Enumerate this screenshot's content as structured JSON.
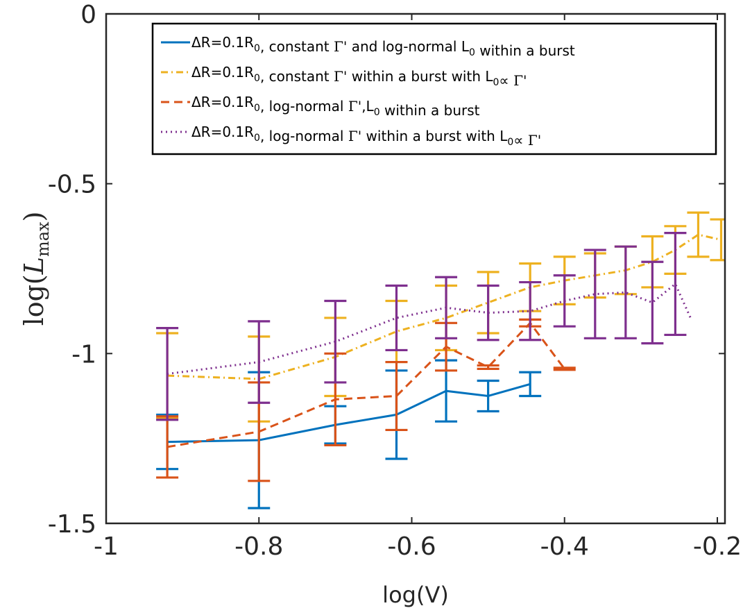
{
  "chart_data": {
    "type": "line",
    "title": "",
    "xlabel": "log(V)",
    "ylabel": "log(L_max)",
    "ylabel_parts": {
      "prefix": "log(",
      "var": "L",
      "sub": "max",
      "suffix": ")"
    },
    "xlim": [
      -1,
      -0.19
    ],
    "ylim": [
      -1.5,
      0
    ],
    "xticks": [
      -1,
      -0.8,
      -0.6,
      -0.4,
      -0.2
    ],
    "xtick_labels": [
      "-1",
      "-0.8",
      "-0.6",
      "-0.4",
      "-0.2"
    ],
    "yticks": [
      0,
      -0.5,
      -1,
      -1.5
    ],
    "ytick_labels": [
      "0",
      "-0.5",
      "-1",
      "-1.5"
    ],
    "grid": false,
    "legend_position": "top-right",
    "series": [
      {
        "name": "ΔR=0.1R0, constant Γ' and log-normal L0 within a burst",
        "legend_parts": [
          {
            "t": "ΔR=0.1R",
            "s": "n"
          },
          {
            "t": "0",
            "s": "sub"
          },
          {
            "t": ", constant ",
            "s": "n"
          },
          {
            "t": "Γ'",
            "s": "g"
          },
          {
            "t": " and log-normal L",
            "s": "n"
          },
          {
            "t": "0",
            "s": "sub"
          },
          {
            "t": " within a burst",
            "s": "n"
          }
        ],
        "color": "#0072BD",
        "style": "solid",
        "x": [
          -0.92,
          -0.8,
          -0.7,
          -0.62,
          -0.555,
          -0.5,
          -0.445
        ],
        "y": [
          -1.26,
          -1.255,
          -1.21,
          -1.18,
          -1.11,
          -1.125,
          -1.09
        ],
        "err": [
          0.08,
          0.2,
          0.055,
          0.13,
          0.09,
          0.045,
          0.035
        ]
      },
      {
        "name": "ΔR=0.1R0, constant Γ' within a burst with L0∝ Γ'",
        "legend_parts": [
          {
            "t": "ΔR=0.1R",
            "s": "n"
          },
          {
            "t": "0",
            "s": "sub"
          },
          {
            "t": ", constant ",
            "s": "n"
          },
          {
            "t": "Γ'",
            "s": "g"
          },
          {
            "t": " within a burst with L",
            "s": "n"
          },
          {
            "t": "0",
            "s": "sub"
          },
          {
            "t": "∝ ",
            "s": "n"
          },
          {
            "t": "Γ'",
            "s": "g"
          }
        ],
        "color": "#EDB120",
        "style": "dashdot",
        "x": [
          -0.92,
          -0.8,
          -0.7,
          -0.62,
          -0.555,
          -0.5,
          -0.445,
          -0.4,
          -0.36,
          -0.32,
          -0.285,
          -0.255,
          -0.225,
          -0.195
        ],
        "y": [
          -1.065,
          -1.075,
          -1.01,
          -0.935,
          -0.895,
          -0.85,
          -0.805,
          -0.785,
          -0.77,
          -0.755,
          -0.73,
          -0.695,
          -0.65,
          -0.665
        ],
        "err": [
          0.125,
          0.125,
          0.115,
          0.09,
          0.095,
          0.09,
          0.07,
          0.07,
          0.065,
          0.07,
          0.075,
          0.07,
          0.065,
          0.06
        ]
      },
      {
        "name": "ΔR=0.1R0, log-normal Γ',L0 within a burst",
        "legend_parts": [
          {
            "t": "ΔR=0.1R",
            "s": "n"
          },
          {
            "t": "0",
            "s": "sub"
          },
          {
            "t": ", log-normal ",
            "s": "n"
          },
          {
            "t": "Γ'",
            "s": "g"
          },
          {
            "t": ",L",
            "s": "n"
          },
          {
            "t": "0",
            "s": "sub"
          },
          {
            "t": " within a burst",
            "s": "n"
          }
        ],
        "color": "#D95319",
        "style": "dashed",
        "x": [
          -0.92,
          -0.8,
          -0.7,
          -0.62,
          -0.555,
          -0.5,
          -0.445,
          -0.4
        ],
        "y": [
          -1.275,
          -1.23,
          -1.135,
          -1.125,
          -0.98,
          -1.04,
          -0.91,
          -1.045
        ],
        "err": [
          0.09,
          0.145,
          0.135,
          0.1,
          0.07,
          0.005,
          0.01,
          0.003
        ]
      },
      {
        "name": "ΔR=0.1R0, log-normal Γ' within a burst with L0∝ Γ'",
        "legend_parts": [
          {
            "t": "ΔR=0.1R",
            "s": "n"
          },
          {
            "t": "0",
            "s": "sub"
          },
          {
            "t": ", log-normal ",
            "s": "n"
          },
          {
            "t": "Γ'",
            "s": "g"
          },
          {
            "t": " within a burst with L",
            "s": "n"
          },
          {
            "t": "0",
            "s": "sub"
          },
          {
            "t": "∝ ",
            "s": "n"
          },
          {
            "t": "Γ'",
            "s": "g"
          }
        ],
        "color": "#7E2F8E",
        "style": "dotted",
        "x": [
          -0.92,
          -0.8,
          -0.7,
          -0.62,
          -0.555,
          -0.5,
          -0.445,
          -0.4,
          -0.36,
          -0.32,
          -0.285,
          -0.255,
          -0.235
        ],
        "y": [
          -1.06,
          -1.025,
          -0.965,
          -0.895,
          -0.865,
          -0.88,
          -0.875,
          -0.845,
          -0.825,
          -0.82,
          -0.85,
          -0.795,
          -0.895
        ],
        "err": [
          0.135,
          0.12,
          0.12,
          0.095,
          0.09,
          0.08,
          0.085,
          0.075,
          0.13,
          0.135,
          0.12,
          0.15,
          0.0
        ]
      }
    ]
  }
}
